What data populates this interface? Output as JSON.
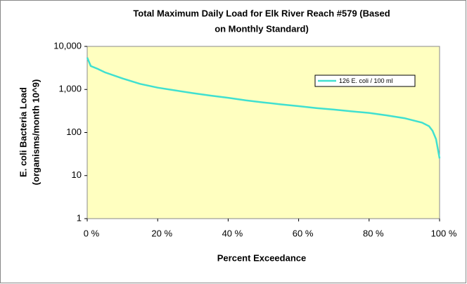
{
  "chart_data": {
    "type": "line",
    "title": [
      "Total Maximum Daily Load for Elk River Reach #579 (Based",
      "on Monthly Standard)"
    ],
    "x_label": "Percent Exceedance",
    "y_label": [
      "E. coli Bacteria Load",
      "(organisms/month 10^9)"
    ],
    "x": [
      0,
      1,
      3,
      5,
      10,
      15,
      20,
      25,
      30,
      35,
      40,
      45,
      50,
      55,
      60,
      65,
      70,
      75,
      80,
      85,
      90,
      95,
      97,
      98,
      99,
      100
    ],
    "series": [
      {
        "name": "126 E. coli / 100 ml",
        "color": "#40e0d0",
        "values": [
          5500,
          3500,
          3000,
          2500,
          1800,
          1350,
          1100,
          950,
          820,
          720,
          640,
          560,
          500,
          450,
          410,
          370,
          340,
          310,
          285,
          250,
          215,
          170,
          140,
          110,
          70,
          25
        ]
      }
    ],
    "xlim": [
      0,
      100
    ],
    "xticks": [
      {
        "value": 0,
        "label": "0 %"
      },
      {
        "value": 20,
        "label": "20 %"
      },
      {
        "value": 40,
        "label": "40 %"
      },
      {
        "value": 60,
        "label": "60 %"
      },
      {
        "value": 80,
        "label": "80 %"
      },
      {
        "value": 100,
        "label": "100 %"
      }
    ],
    "ylim": [
      1,
      10000
    ],
    "yticks": [
      1,
      10,
      100,
      {
        "value": 1000,
        "label": "1,000"
      },
      {
        "value": 10000,
        "label": "10,000"
      }
    ],
    "yscale": "log",
    "grid": false,
    "legend": "upper right",
    "plot_color": "#ffffc0"
  }
}
